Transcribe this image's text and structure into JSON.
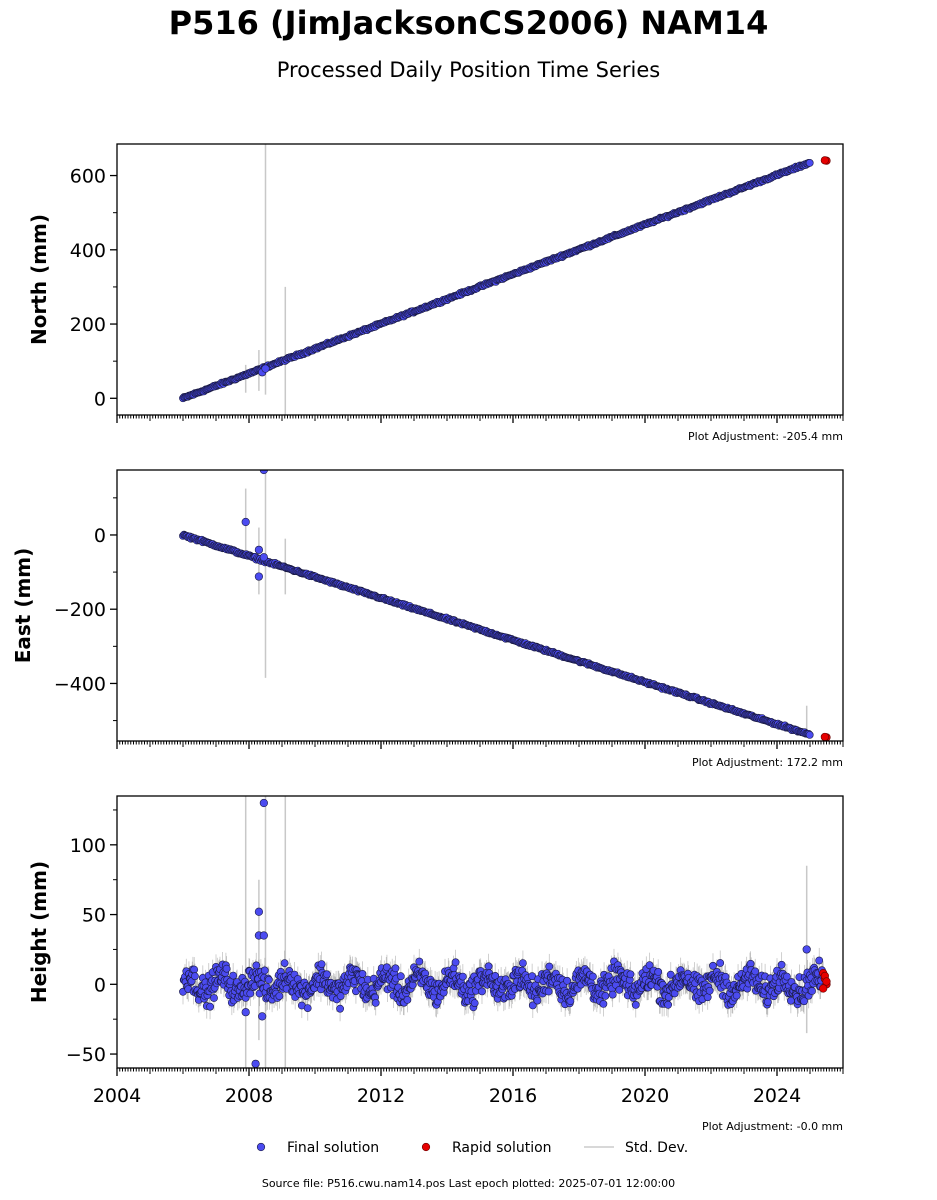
{
  "header": {
    "title": "P516 (JimJacksonCS2006) NAM14",
    "subtitle": "Processed Daily Position Time Series"
  },
  "footer": {
    "source": "Source file: P516.cwu.nam14.pos  Last epoch plotted: 2025-07-01 12:00:00"
  },
  "legend": [
    {
      "label": "Final solution",
      "color": "#4b4bf0",
      "kind": "dot"
    },
    {
      "label": "Rapid solution",
      "color": "#e60000",
      "kind": "dot"
    },
    {
      "label": "Std. Dev.",
      "color": "#cccccc",
      "kind": "line"
    }
  ],
  "colors": {
    "final": "#4b4bf0",
    "rapid": "#e60000",
    "stddev": "#c8c8c8",
    "edge": "#1a1a40"
  },
  "chart_data": [
    {
      "type": "scatter",
      "ylabel": "North (mm)",
      "adjustment": "Plot Adjustment: -205.4 mm",
      "xlim": [
        2004,
        2026
      ],
      "ylim": [
        -45,
        685
      ],
      "yticks": [
        "0",
        "200",
        "400",
        "600"
      ],
      "series": [
        {
          "name": "Final solution",
          "trend": {
            "x0": 2006.0,
            "y0": 0,
            "x1": 2025.0,
            "y1": 635
          },
          "scatter": 2,
          "outliers": [
            [
              2008.4,
              70
            ],
            [
              2008.5,
              80
            ]
          ],
          "stddev_bars": [
            [
              2008.5,
              10,
              685
            ],
            [
              2009.1,
              -45,
              300
            ],
            [
              2007.9,
              15,
              90
            ],
            [
              2008.3,
              20,
              130
            ]
          ]
        },
        {
          "name": "Rapid solution",
          "points": [
            [
              2025.5,
              640
            ],
            [
              2025.45,
              641
            ]
          ]
        }
      ]
    },
    {
      "type": "scatter",
      "ylabel": "East (mm)",
      "adjustment": "Plot Adjustment: 172.2 mm",
      "xlim": [
        2004,
        2026
      ],
      "ylim": [
        -555,
        175
      ],
      "yticks": [
        "0",
        "−200",
        "−400"
      ],
      "series": [
        {
          "name": "Final solution",
          "trend": {
            "x0": 2006.0,
            "y0": 0,
            "x1": 2025.0,
            "y1": -538
          },
          "scatter": 2,
          "outliers": [
            [
              2007.9,
              35
            ],
            [
              2008.3,
              -40
            ],
            [
              2008.3,
              -112
            ],
            [
              2008.45,
              175
            ],
            [
              2008.45,
              -60
            ]
          ],
          "stddev_bars": [
            [
              2008.5,
              -385,
              175
            ],
            [
              2009.1,
              -160,
              -10
            ],
            [
              2007.9,
              -60,
              125
            ],
            [
              2008.3,
              -160,
              20
            ],
            [
              2024.9,
              -545,
              -460
            ]
          ]
        },
        {
          "name": "Rapid solution",
          "points": [
            [
              2025.5,
              -545
            ],
            [
              2025.45,
              -544
            ]
          ]
        }
      ]
    },
    {
      "type": "scatter",
      "ylabel": "Height (mm)",
      "adjustment": "Plot Adjustment: -0.0 mm",
      "xlim": [
        2004,
        2026
      ],
      "ylim": [
        -60,
        135
      ],
      "yticks": [
        "100",
        "50",
        "0",
        "−50"
      ],
      "xticks": [
        "2004",
        "2008",
        "2012",
        "2016",
        "2020",
        "2024"
      ],
      "series": [
        {
          "name": "Final solution",
          "noise": {
            "x0": 2006.0,
            "x1": 2025.4,
            "amplitude": 7,
            "seasonal": 6
          },
          "outliers": [
            [
              2008.3,
              52
            ],
            [
              2008.3,
              35
            ],
            [
              2008.45,
              130
            ],
            [
              2008.4,
              -23
            ],
            [
              2008.2,
              -57
            ],
            [
              2007.9,
              -20
            ],
            [
              2024.9,
              25
            ],
            [
              2008.45,
              35
            ]
          ],
          "stddev_bars": [
            [
              2007.9,
              -60,
              135
            ],
            [
              2008.5,
              -60,
              135
            ],
            [
              2009.1,
              -60,
              135
            ],
            [
              2024.9,
              -35,
              85
            ],
            [
              2008.3,
              -40,
              75
            ]
          ]
        },
        {
          "name": "Rapid solution",
          "points": [
            [
              2025.4,
              8
            ],
            [
              2025.45,
              4
            ],
            [
              2025.5,
              0
            ],
            [
              2025.4,
              -3
            ],
            [
              2025.45,
              6
            ],
            [
              2025.5,
              2
            ]
          ]
        }
      ]
    }
  ]
}
